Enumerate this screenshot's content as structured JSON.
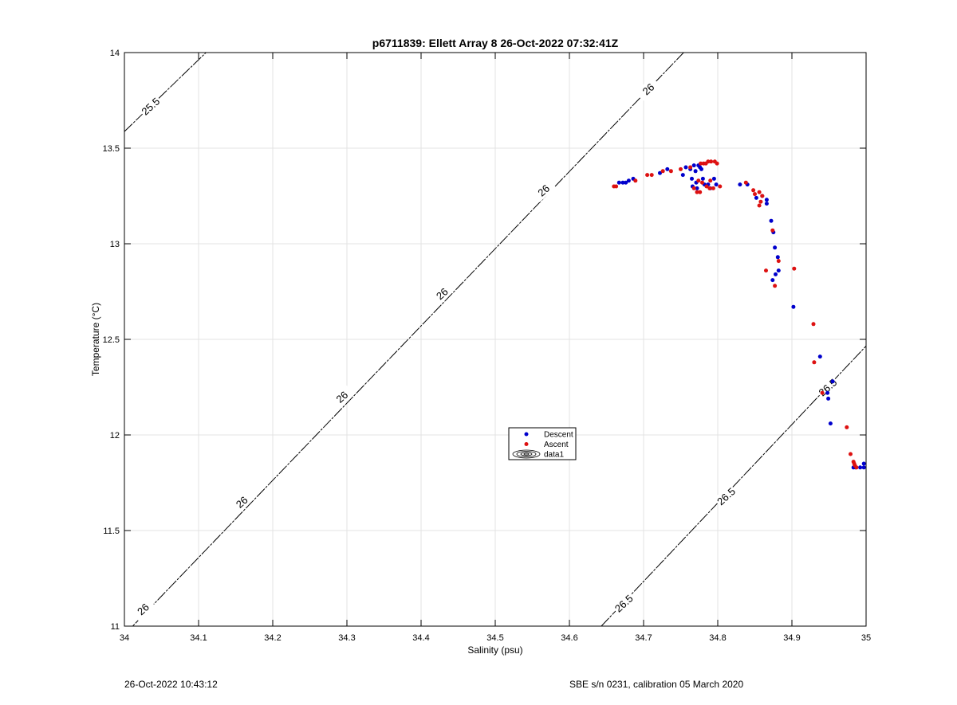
{
  "chart_data": {
    "type": "scatter",
    "title": "p6711839: Ellett Array 8 26-Oct-2022 07:32:41Z",
    "xlabel": "Salinity (psu)",
    "ylabel": "Temperature (°C)",
    "xlim": [
      34,
      35
    ],
    "ylim": [
      11,
      14
    ],
    "x_ticks": [
      34,
      34.1,
      34.2,
      34.3,
      34.4,
      34.5,
      34.6,
      34.7,
      34.8,
      34.9,
      35
    ],
    "x_tick_labels": [
      "34",
      "34.1",
      "34.2",
      "34.3",
      "34.4",
      "34.5",
      "34.6",
      "34.7",
      "34.8",
      "34.9",
      "35"
    ],
    "y_ticks": [
      11,
      11.5,
      12,
      12.5,
      13,
      13.5,
      14
    ],
    "y_tick_labels": [
      "11",
      "11.5",
      "12",
      "12.5",
      "13",
      "13.5",
      "14"
    ],
    "grid": true,
    "legend_position": "center",
    "series": [
      {
        "name": "Descent",
        "color": "#0000cc",
        "points": [
          [
            34.667,
            13.32
          ],
          [
            34.672,
            13.32
          ],
          [
            34.676,
            13.32
          ],
          [
            34.68,
            13.33
          ],
          [
            34.686,
            13.34
          ],
          [
            34.722,
            13.37
          ],
          [
            34.732,
            13.39
          ],
          [
            34.753,
            13.36
          ],
          [
            34.757,
            13.4
          ],
          [
            34.763,
            13.39
          ],
          [
            34.765,
            13.34
          ],
          [
            34.766,
            13.3
          ],
          [
            34.768,
            13.41
          ],
          [
            34.77,
            13.38
          ],
          [
            34.771,
            13.32
          ],
          [
            34.772,
            13.29
          ],
          [
            34.774,
            13.41
          ],
          [
            34.776,
            13.4
          ],
          [
            34.778,
            13.39
          ],
          [
            34.78,
            13.34
          ],
          [
            34.782,
            13.31
          ],
          [
            34.787,
            13.31
          ],
          [
            34.79,
            13.29
          ],
          [
            34.795,
            13.34
          ],
          [
            34.798,
            13.31
          ],
          [
            34.83,
            13.31
          ],
          [
            34.84,
            13.31
          ],
          [
            34.852,
            13.24
          ],
          [
            34.86,
            13.25
          ],
          [
            34.866,
            13.23
          ],
          [
            34.866,
            13.21
          ],
          [
            34.872,
            13.12
          ],
          [
            34.875,
            13.06
          ],
          [
            34.877,
            12.98
          ],
          [
            34.881,
            12.93
          ],
          [
            34.882,
            12.86
          ],
          [
            34.878,
            12.84
          ],
          [
            34.874,
            12.81
          ],
          [
            34.902,
            12.67
          ],
          [
            34.938,
            12.41
          ],
          [
            34.955,
            12.28
          ],
          [
            34.948,
            12.22
          ],
          [
            34.949,
            12.19
          ],
          [
            34.952,
            12.06
          ],
          [
            34.983,
            11.83
          ],
          [
            34.986,
            11.83
          ],
          [
            34.992,
            11.83
          ],
          [
            34.997,
            11.83
          ],
          [
            34.997,
            11.85
          ]
        ]
      },
      {
        "name": "Ascent",
        "color": "#dd1111",
        "points": [
          [
            34.66,
            13.3
          ],
          [
            34.663,
            13.3
          ],
          [
            34.689,
            13.33
          ],
          [
            34.705,
            13.36
          ],
          [
            34.711,
            13.36
          ],
          [
            34.726,
            13.38
          ],
          [
            34.737,
            13.38
          ],
          [
            34.75,
            13.39
          ],
          [
            34.763,
            13.4
          ],
          [
            34.768,
            13.29
          ],
          [
            34.772,
            13.27
          ],
          [
            34.774,
            13.33
          ],
          [
            34.776,
            13.27
          ],
          [
            34.777,
            13.42
          ],
          [
            34.779,
            13.32
          ],
          [
            34.781,
            13.42
          ],
          [
            34.784,
            13.42
          ],
          [
            34.785,
            13.3
          ],
          [
            34.787,
            13.43
          ],
          [
            34.789,
            13.29
          ],
          [
            34.79,
            13.33
          ],
          [
            34.791,
            13.43
          ],
          [
            34.794,
            13.29
          ],
          [
            34.796,
            13.43
          ],
          [
            34.799,
            13.42
          ],
          [
            34.803,
            13.3
          ],
          [
            34.838,
            13.32
          ],
          [
            34.848,
            13.28
          ],
          [
            34.85,
            13.26
          ],
          [
            34.856,
            13.27
          ],
          [
            34.858,
            13.22
          ],
          [
            34.86,
            13.25
          ],
          [
            34.856,
            13.2
          ],
          [
            34.865,
            12.86
          ],
          [
            34.874,
            13.07
          ],
          [
            34.877,
            12.78
          ],
          [
            34.882,
            12.91
          ],
          [
            34.903,
            12.87
          ],
          [
            34.929,
            12.58
          ],
          [
            34.93,
            12.38
          ],
          [
            34.941,
            12.22
          ],
          [
            34.974,
            12.04
          ],
          [
            34.979,
            11.9
          ],
          [
            34.983,
            11.86
          ],
          [
            34.985,
            11.84
          ],
          [
            34.987,
            11.83
          ],
          [
            34.984,
            11.85
          ]
        ]
      }
    ],
    "contours": [
      {
        "level": "25.5",
        "points": [
          [
            34.0,
            13.587
          ],
          [
            34.11,
            14.0
          ]
        ]
      },
      {
        "level": "26",
        "points": [
          [
            34.0,
            10.955
          ],
          [
            34.754,
            14.0
          ]
        ]
      },
      {
        "level": "26.5",
        "points": [
          [
            34.643,
            11.0
          ],
          [
            35.0,
            12.465
          ]
        ]
      }
    ],
    "contour_labels": [
      {
        "text": "25.5",
        "x": 34.035,
        "y": 13.72
      },
      {
        "text": "26",
        "x": 34.025,
        "y": 11.09
      },
      {
        "text": "26",
        "x": 34.158,
        "y": 11.65
      },
      {
        "text": "26",
        "x": 34.293,
        "y": 12.2
      },
      {
        "text": "26",
        "x": 34.428,
        "y": 12.74
      },
      {
        "text": "26",
        "x": 34.565,
        "y": 13.28
      },
      {
        "text": "26",
        "x": 34.706,
        "y": 13.81
      },
      {
        "text": "26.5",
        "x": 34.673,
        "y": 11.12
      },
      {
        "text": "26.5",
        "x": 34.811,
        "y": 11.68
      },
      {
        "text": "26.5",
        "x": 34.948,
        "y": 12.25
      }
    ],
    "legend": [
      {
        "label": "Descent",
        "marker": "dot",
        "color": "#0000cc"
      },
      {
        "label": "Ascent",
        "marker": "dot",
        "color": "#dd1111"
      },
      {
        "label": "data1",
        "marker": "contour",
        "color": "#000000"
      }
    ]
  },
  "footer": {
    "timestamp": "26-Oct-2022 10:43:12",
    "sensor_info": "SBE s/n 0231, calibration 05 March 2020"
  }
}
